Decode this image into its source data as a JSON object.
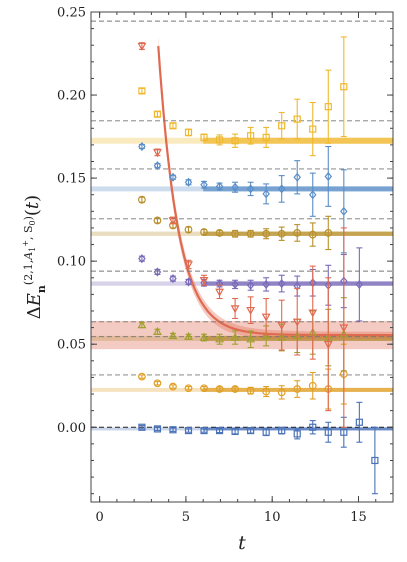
{
  "chart_data": {
    "type": "scatter",
    "title": "",
    "xlabel": "t",
    "ylabel": "ΔE_n^{(2,1,A1+,S0)}(t)",
    "xlim": [
      -0.5,
      17
    ],
    "ylim": [
      -0.045,
      0.25
    ],
    "xticks": [
      0,
      5,
      10,
      15
    ],
    "yticks": [
      0.0,
      0.05,
      0.1,
      0.15,
      0.2,
      0.25
    ],
    "xtick_labels": [
      "0",
      "5",
      "10",
      "15"
    ],
    "ytick_labels": [
      "0.00",
      "0.05",
      "0.10",
      "0.15",
      "0.20",
      "0.25"
    ],
    "grid": false,
    "legend": "none",
    "reference_lines_dashed": [
      0.0,
      0.0315,
      0.0545,
      0.0635,
      0.094,
      0.1255,
      0.1555,
      0.1845,
      0.2445
    ],
    "series": [
      {
        "marker": "square",
        "color": "#4a72b8",
        "points": [
          {
            "x": 2,
            "y": 0.0,
            "err": 0.001
          },
          {
            "x": 3,
            "y": -0.001,
            "err": 0.001
          },
          {
            "x": 4,
            "y": -0.0015,
            "err": 0.001
          },
          {
            "x": 5,
            "y": -0.002,
            "err": 0.001
          },
          {
            "x": 6,
            "y": -0.002,
            "err": 0.001
          },
          {
            "x": 7,
            "y": -0.002,
            "err": 0.0012
          },
          {
            "x": 8,
            "y": -0.0025,
            "err": 0.0015
          },
          {
            "x": 9,
            "y": -0.002,
            "err": 0.0015
          },
          {
            "x": 10,
            "y": -0.003,
            "err": 0.002
          },
          {
            "x": 11,
            "y": -0.002,
            "err": 0.002
          },
          {
            "x": 12,
            "y": -0.004,
            "err": 0.003
          },
          {
            "x": 13,
            "y": 0.0,
            "err": 0.004
          },
          {
            "x": 14,
            "y": -0.003,
            "err": 0.006
          },
          {
            "x": 15,
            "y": -0.003,
            "err": 0.009
          },
          {
            "x": 16,
            "y": 0.003,
            "err": 0.012
          },
          {
            "x": 17,
            "y": -0.02,
            "err": 0.02
          }
        ],
        "fit": {
          "t_min": 6,
          "value": -0.001,
          "band": 0.0006
        }
      },
      {
        "marker": "circle",
        "color": "#e0a028",
        "points": [
          {
            "x": 2,
            "y": 0.0305,
            "err": 0.001
          },
          {
            "x": 3,
            "y": 0.0265,
            "err": 0.001
          },
          {
            "x": 4,
            "y": 0.0245,
            "err": 0.001
          },
          {
            "x": 5,
            "y": 0.0235,
            "err": 0.001
          },
          {
            "x": 6,
            "y": 0.0235,
            "err": 0.001
          },
          {
            "x": 7,
            "y": 0.023,
            "err": 0.0012
          },
          {
            "x": 8,
            "y": 0.023,
            "err": 0.0012
          },
          {
            "x": 9,
            "y": 0.022,
            "err": 0.002
          },
          {
            "x": 10,
            "y": 0.0215,
            "err": 0.003
          },
          {
            "x": 11,
            "y": 0.021,
            "err": 0.004
          },
          {
            "x": 12,
            "y": 0.023,
            "err": 0.005
          },
          {
            "x": 13,
            "y": 0.025,
            "err": 0.008
          },
          {
            "x": 14,
            "y": 0.023,
            "err": 0.012
          },
          {
            "x": 15,
            "y": 0.032,
            "err": 0.018
          }
        ],
        "fit": {
          "t_min": 6,
          "value": 0.0225,
          "band": 0.0012
        }
      },
      {
        "marker": "triangle-up",
        "color": "#a0a030",
        "points": [
          {
            "x": 2,
            "y": 0.0615,
            "err": 0.0015
          },
          {
            "x": 3,
            "y": 0.0575,
            "err": 0.0015
          },
          {
            "x": 4,
            "y": 0.055,
            "err": 0.0015
          },
          {
            "x": 5,
            "y": 0.0545,
            "err": 0.0015
          },
          {
            "x": 6,
            "y": 0.054,
            "err": 0.002
          },
          {
            "x": 7,
            "y": 0.053,
            "err": 0.003
          },
          {
            "x": 8,
            "y": 0.054,
            "err": 0.004
          },
          {
            "x": 9,
            "y": 0.053,
            "err": 0.005
          },
          {
            "x": 10,
            "y": 0.055,
            "err": 0.006
          },
          {
            "x": 11,
            "y": 0.054,
            "err": 0.008
          },
          {
            "x": 12,
            "y": 0.055,
            "err": 0.01
          },
          {
            "x": 13,
            "y": 0.057,
            "err": 0.013
          },
          {
            "x": 14,
            "y": 0.054,
            "err": 0.017
          },
          {
            "x": 15,
            "y": 0.056,
            "err": 0.022
          }
        ],
        "fit": {
          "t_min": 6,
          "value": 0.0535,
          "band": 0.0015
        }
      },
      {
        "marker": "diamond",
        "color": "#7a6ab8",
        "points": [
          {
            "x": 2,
            "y": 0.1015,
            "err": 0.0015
          },
          {
            "x": 3,
            "y": 0.0935,
            "err": 0.0015
          },
          {
            "x": 4,
            "y": 0.0895,
            "err": 0.0015
          },
          {
            "x": 5,
            "y": 0.0875,
            "err": 0.0015
          },
          {
            "x": 6,
            "y": 0.087,
            "err": 0.002
          },
          {
            "x": 7,
            "y": 0.0865,
            "err": 0.002
          },
          {
            "x": 8,
            "y": 0.086,
            "err": 0.0025
          },
          {
            "x": 9,
            "y": 0.0855,
            "err": 0.003
          },
          {
            "x": 10,
            "y": 0.086,
            "err": 0.004
          },
          {
            "x": 11,
            "y": 0.0865,
            "err": 0.005
          },
          {
            "x": 12,
            "y": 0.085,
            "err": 0.006
          },
          {
            "x": 13,
            "y": 0.087,
            "err": 0.008
          },
          {
            "x": 14,
            "y": 0.0855,
            "err": 0.012
          },
          {
            "x": 15,
            "y": 0.088,
            "err": 0.016
          },
          {
            "x": 16,
            "y": 0.086,
            "err": 0.022
          }
        ],
        "fit": {
          "t_min": 6,
          "value": 0.0865,
          "band": 0.0013
        }
      },
      {
        "marker": "circle",
        "color": "#b8902c",
        "points": [
          {
            "x": 2,
            "y": 0.137,
            "err": 0.0015
          },
          {
            "x": 3,
            "y": 0.1245,
            "err": 0.0015
          },
          {
            "x": 4,
            "y": 0.1215,
            "err": 0.0015
          },
          {
            "x": 5,
            "y": 0.119,
            "err": 0.0015
          },
          {
            "x": 6,
            "y": 0.1175,
            "err": 0.0015
          },
          {
            "x": 7,
            "y": 0.117,
            "err": 0.0015
          },
          {
            "x": 8,
            "y": 0.1165,
            "err": 0.002
          },
          {
            "x": 9,
            "y": 0.1165,
            "err": 0.002
          },
          {
            "x": 10,
            "y": 0.1165,
            "err": 0.003
          },
          {
            "x": 11,
            "y": 0.1165,
            "err": 0.004
          },
          {
            "x": 12,
            "y": 0.117,
            "err": 0.005
          },
          {
            "x": 13,
            "y": 0.116,
            "err": 0.007
          },
          {
            "x": 14,
            "y": 0.117,
            "err": 0.01
          }
        ],
        "fit": {
          "t_min": 6,
          "value": 0.1165,
          "band": 0.0013
        }
      },
      {
        "marker": "diamond",
        "color": "#5a8ec8",
        "points": [
          {
            "x": 2,
            "y": 0.169,
            "err": 0.0012
          },
          {
            "x": 3,
            "y": 0.1575,
            "err": 0.0012
          },
          {
            "x": 4,
            "y": 0.1505,
            "err": 0.0012
          },
          {
            "x": 5,
            "y": 0.1475,
            "err": 0.0015
          },
          {
            "x": 6,
            "y": 0.146,
            "err": 0.002
          },
          {
            "x": 7,
            "y": 0.145,
            "err": 0.002
          },
          {
            "x": 8,
            "y": 0.1445,
            "err": 0.003
          },
          {
            "x": 9,
            "y": 0.1435,
            "err": 0.004
          },
          {
            "x": 10,
            "y": 0.1405,
            "err": 0.006
          },
          {
            "x": 11,
            "y": 0.1435,
            "err": 0.008
          },
          {
            "x": 12,
            "y": 0.1505,
            "err": 0.01
          },
          {
            "x": 13,
            "y": 0.14,
            "err": 0.013
          },
          {
            "x": 14,
            "y": 0.151,
            "err": 0.018
          },
          {
            "x": 15,
            "y": 0.13,
            "err": 0.025
          }
        ],
        "fit": {
          "t_min": 6,
          "value": 0.1435,
          "band": 0.0015
        }
      },
      {
        "marker": "square",
        "color": "#f0b830",
        "points": [
          {
            "x": 2,
            "y": 0.2025,
            "err": 0.0015
          },
          {
            "x": 3,
            "y": 0.1885,
            "err": 0.0015
          },
          {
            "x": 4,
            "y": 0.1815,
            "err": 0.0015
          },
          {
            "x": 5,
            "y": 0.1775,
            "err": 0.002
          },
          {
            "x": 6,
            "y": 0.1745,
            "err": 0.002
          },
          {
            "x": 7,
            "y": 0.173,
            "err": 0.003
          },
          {
            "x": 8,
            "y": 0.1725,
            "err": 0.004
          },
          {
            "x": 9,
            "y": 0.1755,
            "err": 0.005
          },
          {
            "x": 10,
            "y": 0.1745,
            "err": 0.006
          },
          {
            "x": 11,
            "y": 0.1815,
            "err": 0.008
          },
          {
            "x": 12,
            "y": 0.1855,
            "err": 0.012
          },
          {
            "x": 13,
            "y": 0.1795,
            "err": 0.016
          },
          {
            "x": 14,
            "y": 0.193,
            "err": 0.022
          },
          {
            "x": 15,
            "y": 0.205,
            "err": 0.03
          }
        ],
        "fit": {
          "t_min": 6,
          "value": 0.1725,
          "band": 0.0018
        }
      },
      {
        "marker": "triangle-down",
        "color": "#e06a50",
        "points": [
          {
            "x": 2,
            "y": 0.2295,
            "err": 0.002
          },
          {
            "x": 3,
            "y": 0.1655,
            "err": 0.002
          },
          {
            "x": 4,
            "y": 0.1245,
            "err": 0.002
          },
          {
            "x": 5,
            "y": 0.098,
            "err": 0.0025
          },
          {
            "x": 6,
            "y": 0.0885,
            "err": 0.003
          },
          {
            "x": 7,
            "y": 0.0815,
            "err": 0.004
          },
          {
            "x": 8,
            "y": 0.0715,
            "err": 0.006
          },
          {
            "x": 9,
            "y": 0.0705,
            "err": 0.008
          },
          {
            "x": 10,
            "y": 0.0665,
            "err": 0.011
          },
          {
            "x": 11,
            "y": 0.0615,
            "err": 0.015
          },
          {
            "x": 12,
            "y": 0.0635,
            "err": 0.02
          },
          {
            "x": 13,
            "y": 0.069,
            "err": 0.028
          },
          {
            "x": 14,
            "y": 0.05,
            "err": 0.04
          },
          {
            "x": 15,
            "y": 0.06,
            "err": 0.06
          }
        ],
        "fit": {
          "t_min": 3.4,
          "value": 0.0555,
          "band": 0.0085
        }
      }
    ]
  }
}
